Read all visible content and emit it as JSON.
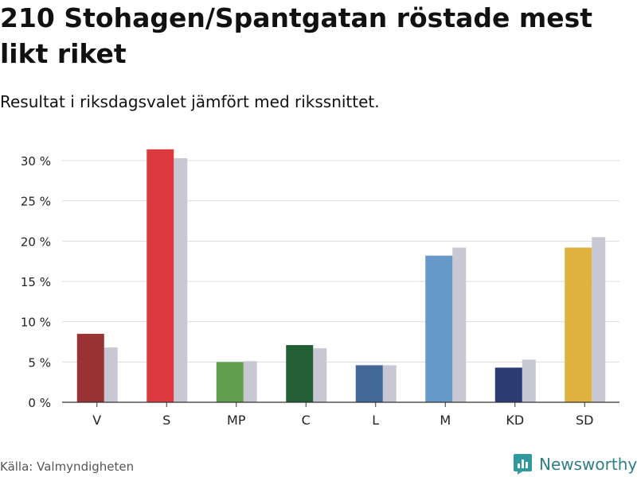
{
  "header": {
    "title": "210 Stohagen/Spantgatan röstade mest likt riket",
    "subtitle": "Resultat i riksdagsvalet jämfört med rikssnittet."
  },
  "footer": {
    "source": "Källa: Valmyndigheten",
    "brand": "Newsworthy"
  },
  "chart_data": {
    "type": "bar",
    "title": "210 Stohagen/Spantgatan röstade mest likt riket",
    "subtitle": "Resultat i riksdagsvalet jämfört med rikssnittet.",
    "xlabel": "",
    "ylabel": "",
    "ylim": [
      0,
      32
    ],
    "yticks": [
      0,
      5,
      10,
      15,
      20,
      25,
      30
    ],
    "ytick_labels": [
      "0 %",
      "5 %",
      "10 %",
      "15 %",
      "20 %",
      "25 %",
      "30 %"
    ],
    "grid": true,
    "categories": [
      "V",
      "S",
      "MP",
      "C",
      "L",
      "M",
      "KD",
      "SD"
    ],
    "series": [
      {
        "name": "210 Stohagen/Spantgatan",
        "values": [
          8.5,
          31.4,
          5.0,
          7.1,
          4.6,
          18.2,
          4.3,
          19.2
        ],
        "colors": [
          "#993333",
          "#dd3a40",
          "#62a050",
          "#235f35",
          "#436896",
          "#6699c9",
          "#2d3b73",
          "#e0b341"
        ]
      },
      {
        "name": "Riket",
        "values": [
          6.8,
          30.3,
          5.1,
          6.7,
          4.6,
          19.2,
          5.3,
          20.5
        ],
        "color": "#c8c8d4"
      }
    ]
  }
}
